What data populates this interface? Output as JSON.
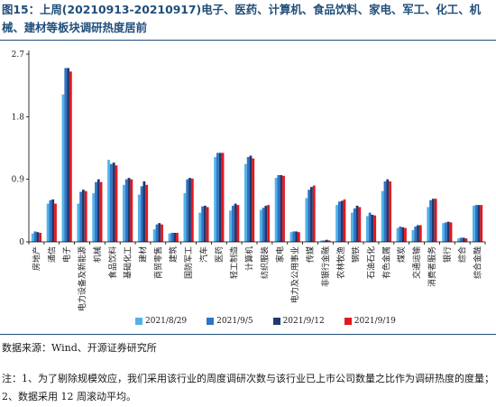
{
  "title": "图15：上周(20210913-20210917)电子、医药、计算机、食品饮料、家电、军工、化工、机械、建材等板块调研热度居前",
  "source": "数据来源：Wind、开源证券研究所",
  "note": "注：1、为了剔除规模效应，我们采用该行业的周度调研次数与该行业已上市公司数量之比作为调研热度的度量；2、数据采用 12 周滚动平均。",
  "colors": {
    "series": [
      "#4fb3e8",
      "#2e74c7",
      "#1f3a6e",
      "#e3181e"
    ],
    "axis": "#000000",
    "title": "#1f4e79"
  },
  "chart_data": {
    "type": "bar",
    "title": "",
    "xlabel": "",
    "ylabel": "",
    "ylim": [
      0,
      2.7
    ],
    "yticks": [
      "0",
      "0.9",
      "1.8",
      "2.7"
    ],
    "grid": false,
    "legend_position": "bottom",
    "categories": [
      "房地产",
      "通信",
      "电子",
      "电力设备及新能源",
      "机械",
      "食品饮料",
      "基础化工",
      "建材",
      "商贸零售",
      "建筑",
      "国防军工",
      "汽车",
      "医药",
      "轻工制造",
      "计算机",
      "纺织服装",
      "家电",
      "电力及公用事业",
      "传媒",
      "非银行金融",
      "农林牧渔",
      "钢铁",
      "石油石化",
      "有色金属",
      "煤炭",
      "交通运输",
      "消费者服务",
      "银行",
      "综合",
      "综合金融"
    ],
    "series": [
      {
        "name": "2021/8/29",
        "values": [
          0.12,
          0.55,
          2.12,
          0.55,
          0.7,
          1.18,
          0.82,
          0.68,
          0.18,
          0.12,
          0.7,
          0.42,
          1.22,
          0.45,
          1.12,
          0.46,
          0.92,
          0.14,
          0.63,
          0.02,
          0.53,
          0.42,
          0.37,
          0.73,
          0.2,
          0.17,
          0.5,
          0.27,
          0.05,
          0.52
        ]
      },
      {
        "name": "2021/9/5",
        "values": [
          0.15,
          0.6,
          2.5,
          0.72,
          0.86,
          1.12,
          0.9,
          0.8,
          0.25,
          0.13,
          0.9,
          0.51,
          1.28,
          0.52,
          1.22,
          0.49,
          0.96,
          0.15,
          0.75,
          0.02,
          0.58,
          0.48,
          0.42,
          0.87,
          0.22,
          0.22,
          0.6,
          0.28,
          0.06,
          0.53
        ]
      },
      {
        "name": "2021/9/12",
        "values": [
          0.14,
          0.61,
          2.5,
          0.75,
          0.9,
          1.14,
          0.92,
          0.87,
          0.27,
          0.13,
          0.92,
          0.52,
          1.28,
          0.55,
          1.24,
          0.52,
          0.96,
          0.15,
          0.79,
          0.03,
          0.59,
          0.52,
          0.39,
          0.9,
          0.21,
          0.24,
          0.62,
          0.29,
          0.06,
          0.53
        ]
      },
      {
        "name": "2021/9/19",
        "values": [
          0.13,
          0.55,
          2.45,
          0.73,
          0.86,
          1.1,
          0.9,
          0.82,
          0.25,
          0.13,
          0.91,
          0.5,
          1.28,
          0.53,
          1.2,
          0.53,
          0.95,
          0.14,
          0.81,
          0.02,
          0.61,
          0.5,
          0.38,
          0.87,
          0.2,
          0.24,
          0.62,
          0.28,
          0.05,
          0.53
        ]
      }
    ]
  }
}
